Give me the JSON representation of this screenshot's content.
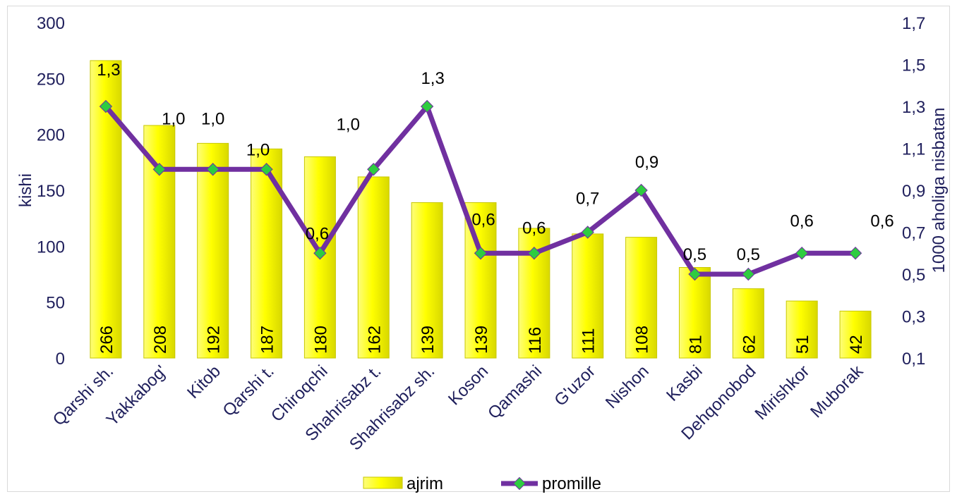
{
  "chart_data": {
    "type": "bar",
    "categories": [
      "Qarshi sh.",
      "Yakkabog'",
      "Kitob",
      "Qarshi t.",
      "Chiroqchi",
      "Shahrisabz t.",
      "Shahrisabz sh.",
      "Koson",
      "Qamashi",
      "G'uzor",
      "Nishon",
      "Kasbi",
      "Dehqonobod",
      "Mirishkor",
      "Muborak"
    ],
    "series": [
      {
        "name": "ajrim",
        "type": "bar",
        "axis": "left",
        "values": [
          266,
          208,
          192,
          187,
          180,
          162,
          139,
          139,
          116,
          111,
          108,
          81,
          62,
          51,
          42
        ],
        "labels": [
          "266",
          "208",
          "192",
          "187",
          "180",
          "162",
          "139",
          "139",
          "116",
          "111",
          "108",
          "81",
          "62",
          "51",
          "42"
        ]
      },
      {
        "name": "promille",
        "type": "line",
        "axis": "right",
        "values": [
          1.3,
          1.0,
          1.0,
          1.0,
          0.6,
          1.0,
          1.3,
          0.6,
          0.6,
          0.7,
          0.9,
          0.5,
          0.5,
          0.6,
          0.6
        ],
        "labels": [
          "1,3",
          "1,0",
          "1,0",
          "1,0",
          "0,6",
          "1,0",
          "1,3",
          "0,6",
          "0,6",
          "0,7",
          "0,9",
          "0,5",
          "0,5",
          "0,6",
          "0,6"
        ]
      }
    ],
    "ylabel": "kishi",
    "y2label": "1000 aholiga nisbatan",
    "ylim": [
      0,
      300
    ],
    "y2lim": [
      0.1,
      1.7
    ],
    "yticks": [
      0,
      50,
      100,
      150,
      200,
      250,
      300
    ],
    "yticks_labels": [
      "0",
      "50",
      "100",
      "150",
      "200",
      "250",
      "300"
    ],
    "y2ticks": [
      0.1,
      0.3,
      0.5,
      0.7,
      0.9,
      1.1,
      1.3,
      1.5,
      1.7
    ],
    "y2ticks_labels": [
      "0,1",
      "0,3",
      "0,5",
      "0,7",
      "0,9",
      "1,1",
      "1,3",
      "1,5",
      "1,7"
    ],
    "grid": false,
    "legend": "bottom",
    "colors": {
      "bar_fill": "#ffff00",
      "bar_shadow": "#c8c800",
      "line": "#7030a0",
      "marker": "#2ecc40",
      "text": "#1f1f5c"
    }
  }
}
